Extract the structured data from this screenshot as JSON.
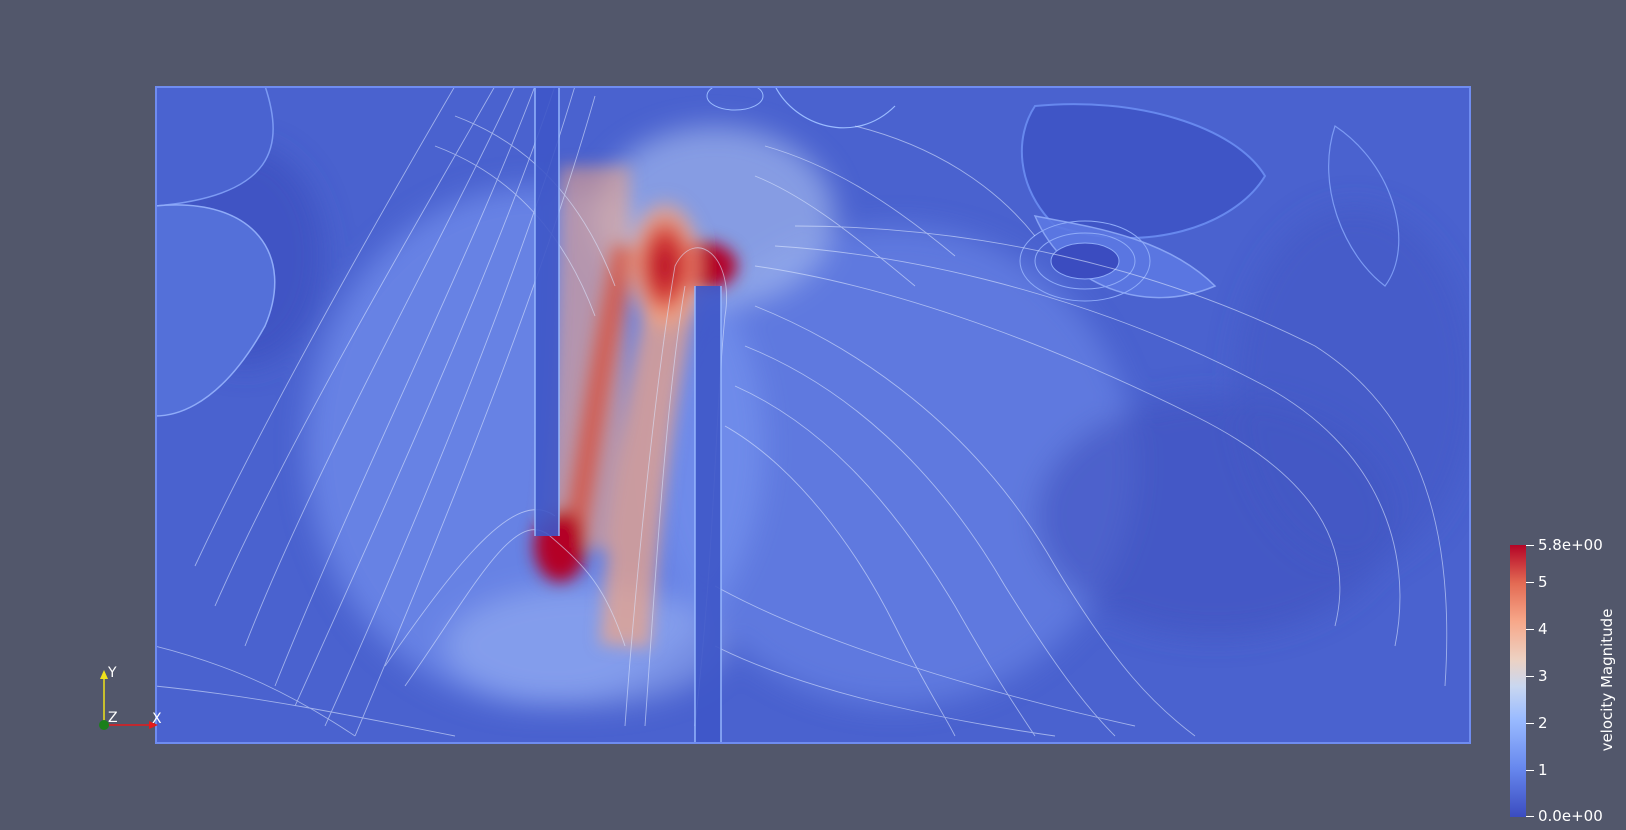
{
  "colors": {
    "background": "#52576b",
    "field_low": "#3b4cc0",
    "field_high": "#b40426",
    "axis_x": "#e31a1c",
    "axis_y": "#f0e21a",
    "axis_origin": "#1a7f1a"
  },
  "field": {
    "streamline_color": "#dbe6ff"
  },
  "colorbar": {
    "title": "velocity Magnitude",
    "max_label": "5.8e+00",
    "min_label": "0.0e+00",
    "ticks": [
      "5",
      "4",
      "3",
      "2",
      "1"
    ],
    "range": [
      0.0,
      5.8
    ]
  },
  "axes": {
    "x": "X",
    "y": "Y",
    "z": "Z"
  }
}
